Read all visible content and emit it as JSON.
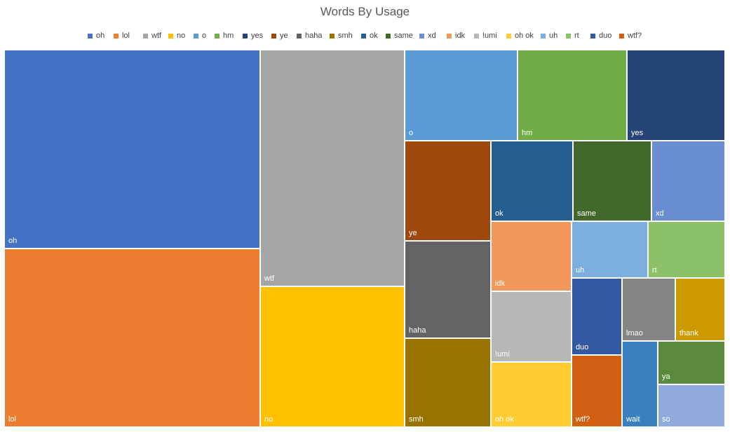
{
  "chart_data": {
    "type": "treemap",
    "title": "Words By Usage",
    "legend_position": "top",
    "legend": [
      "oh",
      "lol",
      "wtf",
      "no",
      "o",
      "hm",
      "yes",
      "ye",
      "haha",
      "smh",
      "ok",
      "same",
      "xd",
      "idk",
      "!umi",
      "oh ok",
      "uh",
      "rt",
      "duo",
      "wtf?"
    ],
    "colors": {
      "oh": "#4472C4",
      "lol": "#ED7D31",
      "wtf": "#A5A5A5",
      "no": "#FFC000",
      "o": "#5B9BD5",
      "hm": "#70AD47",
      "yes": "#264478",
      "ye": "#9E480E",
      "haha": "#636363",
      "smh": "#997300",
      "ok": "#255E91",
      "same": "#43682B",
      "xd": "#698ED0",
      "idk": "#F1975A",
      "!umi": "#B7B7B7",
      "oh ok": "#FFCD33",
      "uh": "#7CAFDD",
      "rt": "#8CC168",
      "duo": "#335AA1",
      "wtf?": "#D26012",
      "lmao": "#848484",
      "thank": "#CC9A00",
      "wait": "#3B7FBF",
      "ya": "#5A8A3B",
      "so": "#8FAADC"
    },
    "tiles": [
      {
        "label": "oh",
        "value": 103
      },
      {
        "label": "lol",
        "value": 93
      },
      {
        "label": "wtf",
        "value": 69
      },
      {
        "label": "no",
        "value": 41
      },
      {
        "label": "o",
        "value": 19
      },
      {
        "label": "hm",
        "value": 19
      },
      {
        "label": "yes",
        "value": 17
      },
      {
        "label": "ye",
        "value": 16
      },
      {
        "label": "haha",
        "value": 15
      },
      {
        "label": "smh",
        "value": 14
      },
      {
        "label": "ok",
        "value": 12
      },
      {
        "label": "same",
        "value": 12
      },
      {
        "label": "xd",
        "value": 11
      },
      {
        "label": "idk",
        "value": 10
      },
      {
        "label": "!umi",
        "value": 10
      },
      {
        "label": "oh ok",
        "value": 9
      },
      {
        "label": "uh",
        "value": 8
      },
      {
        "label": "rt",
        "value": 8
      },
      {
        "label": "duo",
        "value": 7
      },
      {
        "label": "lmao",
        "value": 6
      },
      {
        "label": "thank",
        "value": 6
      },
      {
        "label": "wtf?",
        "value": 6
      },
      {
        "label": "wait",
        "value": 6
      },
      {
        "label": "ya",
        "value": 5
      },
      {
        "label": "so",
        "value": 5
      }
    ]
  }
}
